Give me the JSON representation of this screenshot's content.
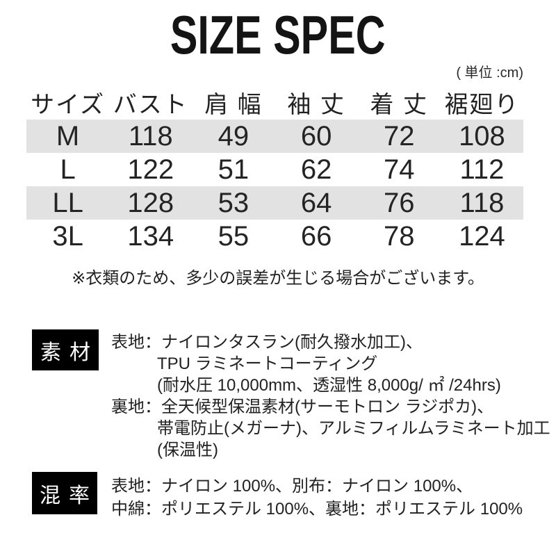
{
  "title": "SIZE SPEC",
  "unit_note": "( 単位 :cm)",
  "size_table": {
    "headers": [
      "サイズ",
      "バスト",
      "肩 幅",
      "袖 丈",
      "着 丈",
      "裾廻り"
    ],
    "rows": [
      {
        "size": "M",
        "values": [
          "118",
          "49",
          "60",
          "72",
          "108"
        ]
      },
      {
        "size": "L",
        "values": [
          "122",
          "51",
          "62",
          "74",
          "112"
        ]
      },
      {
        "size": "LL",
        "values": [
          "128",
          "53",
          "64",
          "76",
          "118"
        ]
      },
      {
        "size": "3L",
        "values": [
          "134",
          "55",
          "66",
          "78",
          "124"
        ]
      }
    ]
  },
  "disclaimer": "※衣類のため、多少の誤差が生じる場合がございます。",
  "material_section": {
    "label": "素材",
    "lines": [
      {
        "text": "表地：ナイロンタスラン(耐久撥水加工)、"
      },
      {
        "text": "TPU ラミネートコーティング"
      },
      {
        "text": "(耐水圧 10,000mm、透湿性 8,000g/ ㎡ /24hrs)"
      },
      {
        "text": "裏地：全天候型保温素材(サーモトロン ラジポカ)、"
      },
      {
        "text": "帯電防止(メガーナ)、アルミフィルムラミネート加工"
      },
      {
        "text": "(保温性)"
      }
    ]
  },
  "blend_section": {
    "label": "混率",
    "lines": [
      {
        "text": "表地：ナイロン 100%、別布：ナイロン 100%、"
      },
      {
        "text": "中綿：ポリエステル 100%、裏地：ポリエステル 100%"
      }
    ]
  },
  "colors": {
    "stripe": "#e2e2e2",
    "label_bg": "#000000",
    "label_text": "#ffffff",
    "text": "#222222"
  }
}
